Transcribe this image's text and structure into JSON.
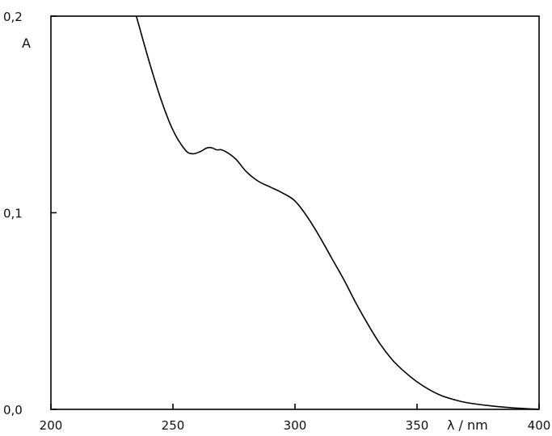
{
  "chart_data": {
    "type": "line",
    "title": "",
    "xlabel": "λ / nm",
    "ylabel": "A",
    "xlim": [
      200,
      400
    ],
    "ylim": [
      0.0,
      0.2
    ],
    "x_ticks": [
      200,
      250,
      300,
      350,
      400
    ],
    "x_tick_labels": [
      "200",
      "250",
      "300",
      "350",
      "400"
    ],
    "y_ticks": [
      0.0,
      0.1,
      0.2
    ],
    "y_tick_labels": [
      "0,0",
      "0,1",
      "0,2"
    ],
    "grid": false,
    "series": [
      {
        "color": "#000000",
        "x": [
          235,
          240,
          245,
          250,
          255,
          258,
          261,
          264,
          266,
          268,
          270,
          273,
          276,
          280,
          285,
          290,
          295,
          300,
          305,
          310,
          315,
          320,
          325,
          330,
          335,
          340,
          345,
          350,
          355,
          360,
          365,
          370,
          380,
          390,
          400
        ],
        "y": [
          0.2,
          0.178,
          0.158,
          0.142,
          0.132,
          0.13,
          0.131,
          0.133,
          0.133,
          0.132,
          0.132,
          0.13,
          0.127,
          0.121,
          0.116,
          0.113,
          0.11,
          0.106,
          0.098,
          0.088,
          0.077,
          0.066,
          0.054,
          0.043,
          0.033,
          0.025,
          0.019,
          0.014,
          0.01,
          0.007,
          0.005,
          0.0035,
          0.0018,
          0.0007,
          0.0
        ]
      }
    ]
  }
}
